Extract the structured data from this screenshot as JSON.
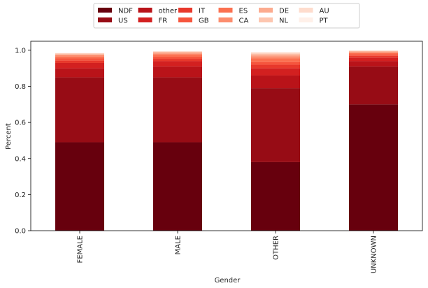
{
  "chart_data": {
    "type": "bar",
    "stacked": true,
    "title": "",
    "xlabel": "Gender",
    "ylabel": "Percent",
    "ylim": [
      0,
      1.05
    ],
    "yticks": [
      "0.0",
      "0.2",
      "0.4",
      "0.6",
      "0.8",
      "1.0"
    ],
    "grid": false,
    "legend_position": "top-center",
    "categories": [
      "FEMALE",
      "MALE",
      "OTHER",
      "UNKNOWN"
    ],
    "series": [
      {
        "name": "NDF",
        "color": "#67000d",
        "values": [
          0.49,
          0.49,
          0.38,
          0.7
        ]
      },
      {
        "name": "US",
        "color": "#970c15",
        "values": [
          0.36,
          0.36,
          0.41,
          0.21
        ]
      },
      {
        "name": "other",
        "color": "#b91319",
        "values": [
          0.05,
          0.06,
          0.07,
          0.03
        ]
      },
      {
        "name": "FR",
        "color": "#d32020",
        "values": [
          0.03,
          0.03,
          0.04,
          0.02
        ]
      },
      {
        "name": "IT",
        "color": "#e8382b",
        "values": [
          0.013,
          0.013,
          0.02,
          0.01
        ]
      },
      {
        "name": "GB",
        "color": "#f6553d",
        "values": [
          0.012,
          0.012,
          0.015,
          0.008
        ]
      },
      {
        "name": "ES",
        "color": "#fb7050",
        "values": [
          0.011,
          0.011,
          0.02,
          0.007
        ]
      },
      {
        "name": "CA",
        "color": "#fc8d6e",
        "values": [
          0.007,
          0.007,
          0.012,
          0.005
        ]
      },
      {
        "name": "DE",
        "color": "#fcab8f",
        "values": [
          0.005,
          0.005,
          0.01,
          0.004
        ]
      },
      {
        "name": "NL",
        "color": "#fdc6b0",
        "values": [
          0.004,
          0.004,
          0.006,
          0.003
        ]
      },
      {
        "name": "AU",
        "color": "#fedccd",
        "values": [
          0.003,
          0.003,
          0.005,
          0.002
        ]
      },
      {
        "name": "PT",
        "color": "#fff0e9",
        "values": [
          0.001,
          0.001,
          0.002,
          0.001
        ]
      }
    ]
  }
}
